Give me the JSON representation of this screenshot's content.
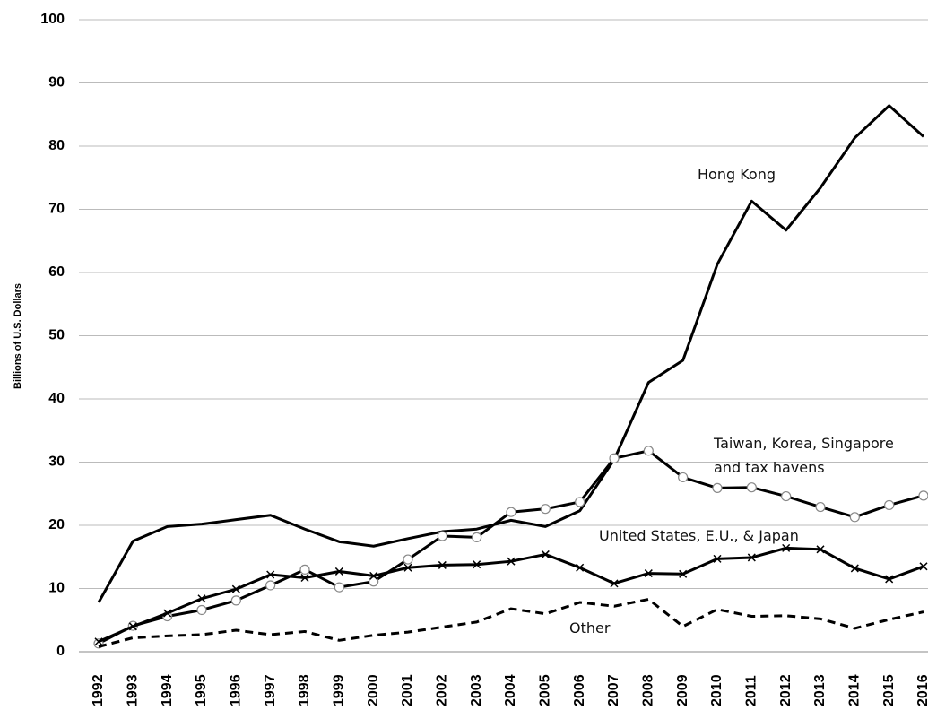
{
  "chart_data": {
    "type": "line",
    "y_label": "Billions of U.S. Dollars",
    "categories": [
      "1992",
      "1993",
      "1994",
      "1995",
      "1996",
      "1997",
      "1998",
      "1999",
      "2000",
      "2001",
      "2002",
      "2003",
      "2004",
      "2005",
      "2006",
      "2007",
      "2008",
      "2009",
      "2010",
      "2011",
      "2012",
      "2013",
      "2014",
      "2015",
      "2016"
    ],
    "series": [
      {
        "name": "Hong Kong",
        "color": "#000000",
        "marker": "none",
        "dash": false,
        "values": [
          7.8,
          17.5,
          19.8,
          20.2,
          20.9,
          21.6,
          19.4,
          17.4,
          16.7,
          17.9,
          19.0,
          19.4,
          20.8,
          19.8,
          22.3,
          30.4,
          42.6,
          46.1,
          61.3,
          71.3,
          66.7,
          73.4,
          81.3,
          86.4,
          81.5
        ]
      },
      {
        "name": "Taiwan, Korea, Singapore and tax havens",
        "color": "#000000",
        "marker": "circle",
        "dash": false,
        "values": [
          1.3,
          4.1,
          5.6,
          6.6,
          8.1,
          10.5,
          13.0,
          10.2,
          11.1,
          14.6,
          18.3,
          18.1,
          22.1,
          22.6,
          23.7,
          30.6,
          31.8,
          27.6,
          25.9,
          26.0,
          24.6,
          22.9,
          21.3,
          23.2,
          24.7
        ]
      },
      {
        "name": "United States, E.U., & Japan",
        "color": "#000000",
        "marker": "x",
        "dash": false,
        "values": [
          1.6,
          4.0,
          6.1,
          8.4,
          9.9,
          12.2,
          11.7,
          12.7,
          12.0,
          13.3,
          13.7,
          13.8,
          14.3,
          15.4,
          13.3,
          10.8,
          12.4,
          12.3,
          14.7,
          14.9,
          16.4,
          16.2,
          13.2,
          11.5,
          13.5
        ]
      },
      {
        "name": "Other",
        "color": "#000000",
        "marker": "none",
        "dash": true,
        "values": [
          0.8,
          2.2,
          2.5,
          2.7,
          3.4,
          2.7,
          3.2,
          1.8,
          2.6,
          3.1,
          3.9,
          4.7,
          6.8,
          6.0,
          7.8,
          7.2,
          8.3,
          4.0,
          6.7,
          5.6,
          5.7,
          5.2,
          3.7,
          5.1,
          6.3
        ]
      }
    ],
    "ylim": [
      0,
      100
    ],
    "yticks": [
      0,
      10,
      20,
      30,
      40,
      50,
      60,
      70,
      80,
      90,
      100
    ],
    "grid": true
  }
}
